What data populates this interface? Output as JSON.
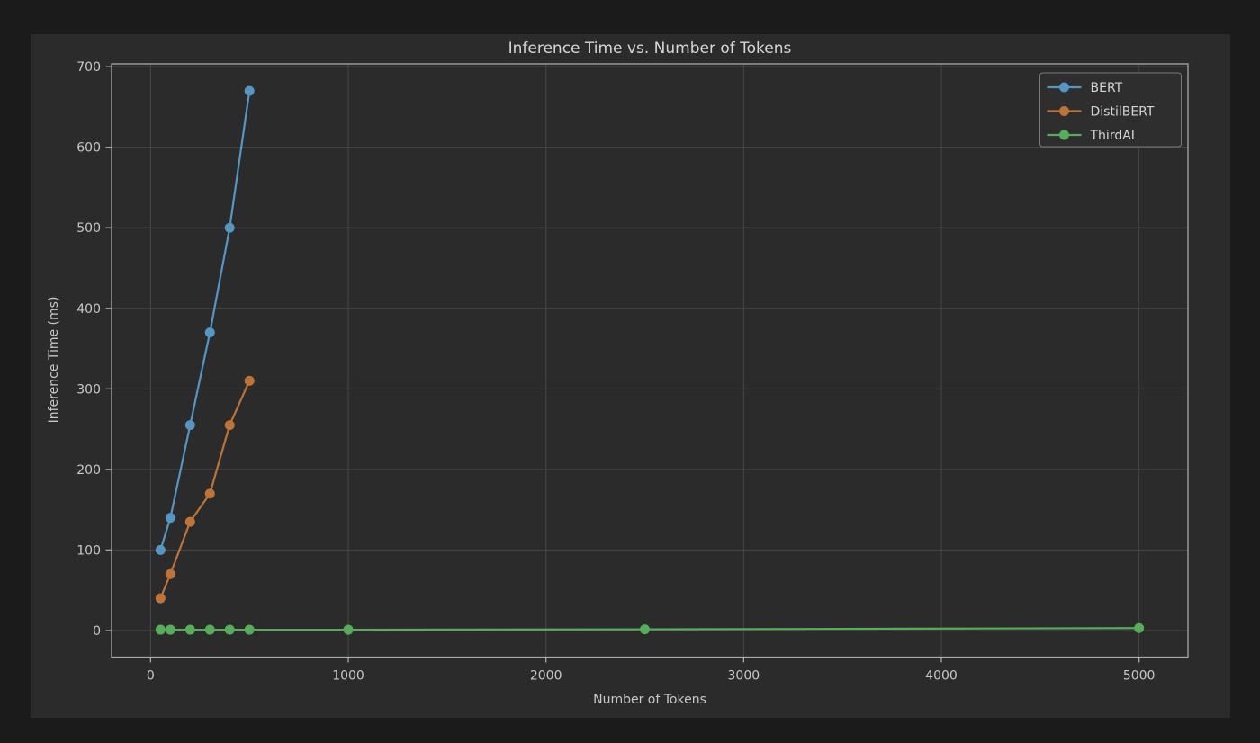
{
  "colors": {
    "canvas": "#1b1b1b",
    "figure_bg": "#2b2b2b",
    "grid": "#474747",
    "spine": "#a9a9a9",
    "tick_text": "#c8c8c8",
    "title_text": "#d6d6d6",
    "legend_bg": "#2e2e2e",
    "legend_border": "#7a7a7a"
  },
  "chart_data": {
    "type": "line",
    "title": "Inference Time vs. Number of Tokens",
    "xlabel": "Number of Tokens",
    "ylabel": "Inference Time (ms)",
    "xlim": [
      -197.5,
      5247.5
    ],
    "ylim": [
      -33,
      703.5
    ],
    "xticks": [
      0,
      1000,
      2000,
      3000,
      4000,
      5000
    ],
    "yticks": [
      0,
      100,
      200,
      300,
      400,
      500,
      600,
      700
    ],
    "grid": true,
    "legend_position": "upper right",
    "marker": "circle",
    "series": [
      {
        "name": "BERT",
        "color": "#5795c2",
        "x": [
          50,
          100,
          200,
          300,
          400,
          500
        ],
        "y": [
          100,
          140,
          255,
          370,
          500,
          670
        ]
      },
      {
        "name": "DistilBERT",
        "color": "#bd7439",
        "x": [
          50,
          100,
          200,
          300,
          400,
          500
        ],
        "y": [
          40,
          70,
          135,
          170,
          255,
          310
        ]
      },
      {
        "name": "ThirdAI",
        "color": "#56ad5c",
        "x": [
          50,
          100,
          200,
          300,
          400,
          500,
          1000,
          2500,
          5000
        ],
        "y": [
          1,
          1,
          1,
          1,
          1,
          1,
          1,
          1.5,
          3
        ]
      }
    ]
  }
}
